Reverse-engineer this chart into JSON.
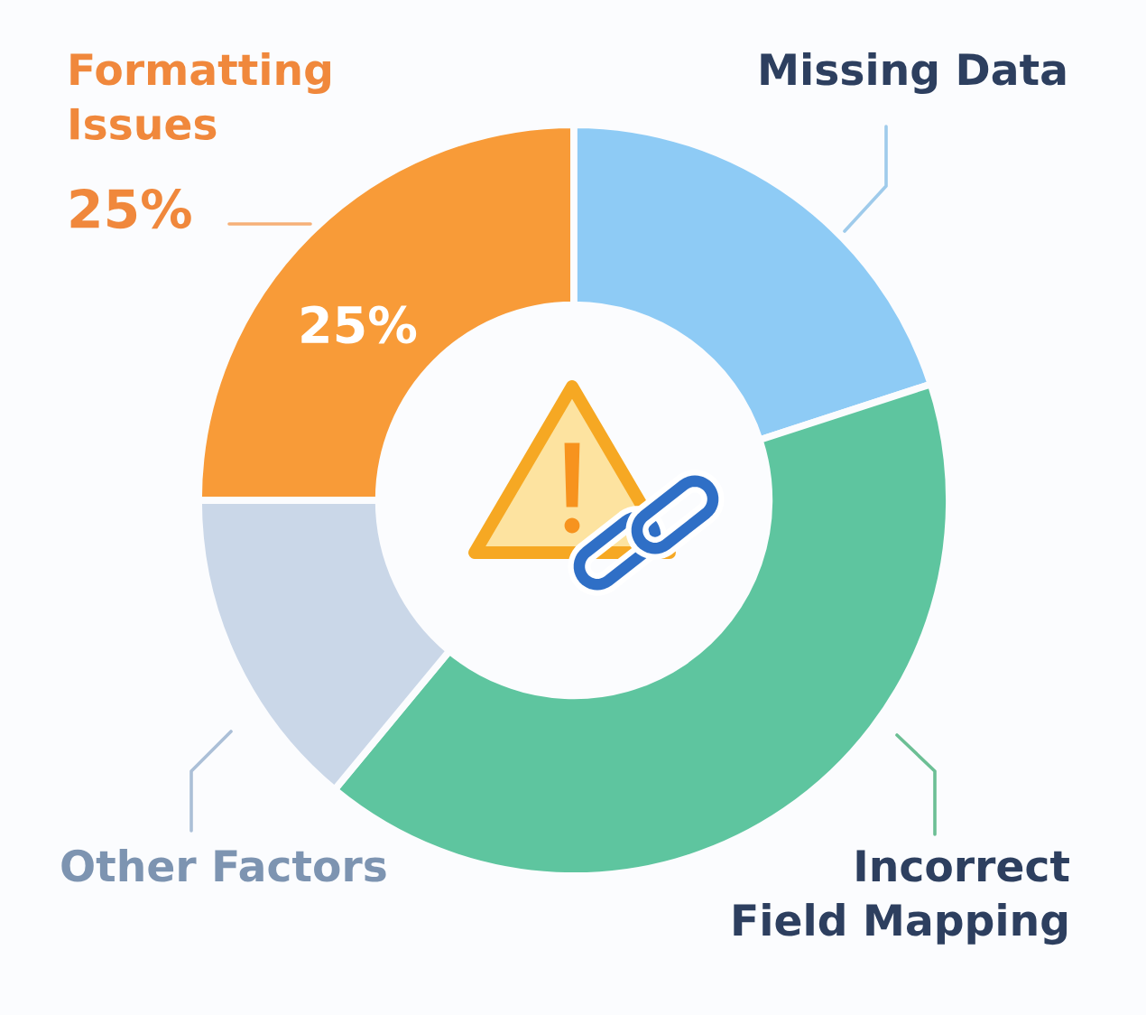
{
  "chart_data": {
    "type": "donut",
    "categories": [
      "Formatting\nIssues",
      "Missing Data",
      "Incorrect\nField Mapping",
      "Other Factors"
    ],
    "values": [
      25,
      20,
      41,
      14
    ],
    "colors": [
      "#f89b38",
      "#8ecbf5",
      "#5ec59f",
      "#cad7e8"
    ],
    "value_labels": [
      "25%",
      null,
      null,
      null
    ],
    "annotations": [
      "25%"
    ]
  }
}
